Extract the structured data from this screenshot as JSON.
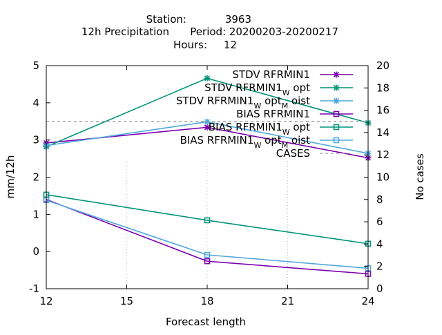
{
  "title": {
    "line1_label": "Station:",
    "line1_value": "3963",
    "line2_label": "12h Precipitation",
    "line2_value": "Period: 20200203-20200217",
    "line3_label": "Hours:",
    "line3_value": "12"
  },
  "chart_data": {
    "type": "line",
    "xlabel": "Forecast length",
    "ylabel": "mm/12h",
    "y2label": "No cases",
    "x_ticks": [
      12,
      15,
      18,
      21,
      24
    ],
    "y_ticks": [
      -1,
      0,
      1,
      2,
      3,
      4,
      5
    ],
    "y2_ticks": [
      0,
      2,
      4,
      6,
      8,
      10,
      12,
      14,
      16,
      18,
      20
    ],
    "xlim": [
      12,
      24
    ],
    "ylim": [
      -1,
      5
    ],
    "y2lim": [
      0,
      20
    ],
    "legend_position": "top-right",
    "x": [
      12,
      18,
      24
    ],
    "series": [
      {
        "name": "STDV RFRMIN1",
        "sub": "",
        "tail": "",
        "sub2": "",
        "tail2": "",
        "color": "#7b00b0",
        "marker": "x",
        "dash": "",
        "values": [
          2.92,
          3.34,
          2.52
        ]
      },
      {
        "name": "STDV RFRMIN1",
        "sub": "W",
        "tail": " opt",
        "sub2": "",
        "tail2": "",
        "color": "#00937a",
        "marker": "x",
        "dash": "",
        "values": [
          2.82,
          4.66,
          3.46
        ]
      },
      {
        "name": "STDV RFRMIN1",
        "sub": "W",
        "tail": " opt",
        "sub2": "M",
        "tail2": " oist",
        "color": "#4fa8dc",
        "marker": "x",
        "dash": "",
        "values": [
          2.85,
          3.49,
          2.64
        ]
      },
      {
        "name": "BIAS RFRMIN1",
        "sub": "",
        "tail": "",
        "sub2": "",
        "tail2": "",
        "color": "#7b00b0",
        "marker": "square",
        "dash": "",
        "values": [
          1.4,
          -0.26,
          -0.6
        ]
      },
      {
        "name": "BIAS RFRMIN1",
        "sub": "W",
        "tail": " opt",
        "sub2": "",
        "tail2": "",
        "color": "#00937a",
        "marker": "square",
        "dash": "",
        "values": [
          1.53,
          0.84,
          0.21
        ]
      },
      {
        "name": "BIAS RFRMIN1",
        "sub": "W",
        "tail": " opt",
        "sub2": "M",
        "tail2": " oist",
        "color": "#4fa8dc",
        "marker": "square",
        "dash": "",
        "values": [
          1.38,
          -0.09,
          -0.45
        ]
      },
      {
        "name": "CASES",
        "sub": "",
        "tail": "",
        "sub2": "",
        "tail2": "",
        "color": "#999999",
        "marker": "",
        "dash": "4,4",
        "axis": "y2",
        "values": [
          15,
          15,
          15
        ]
      }
    ]
  }
}
